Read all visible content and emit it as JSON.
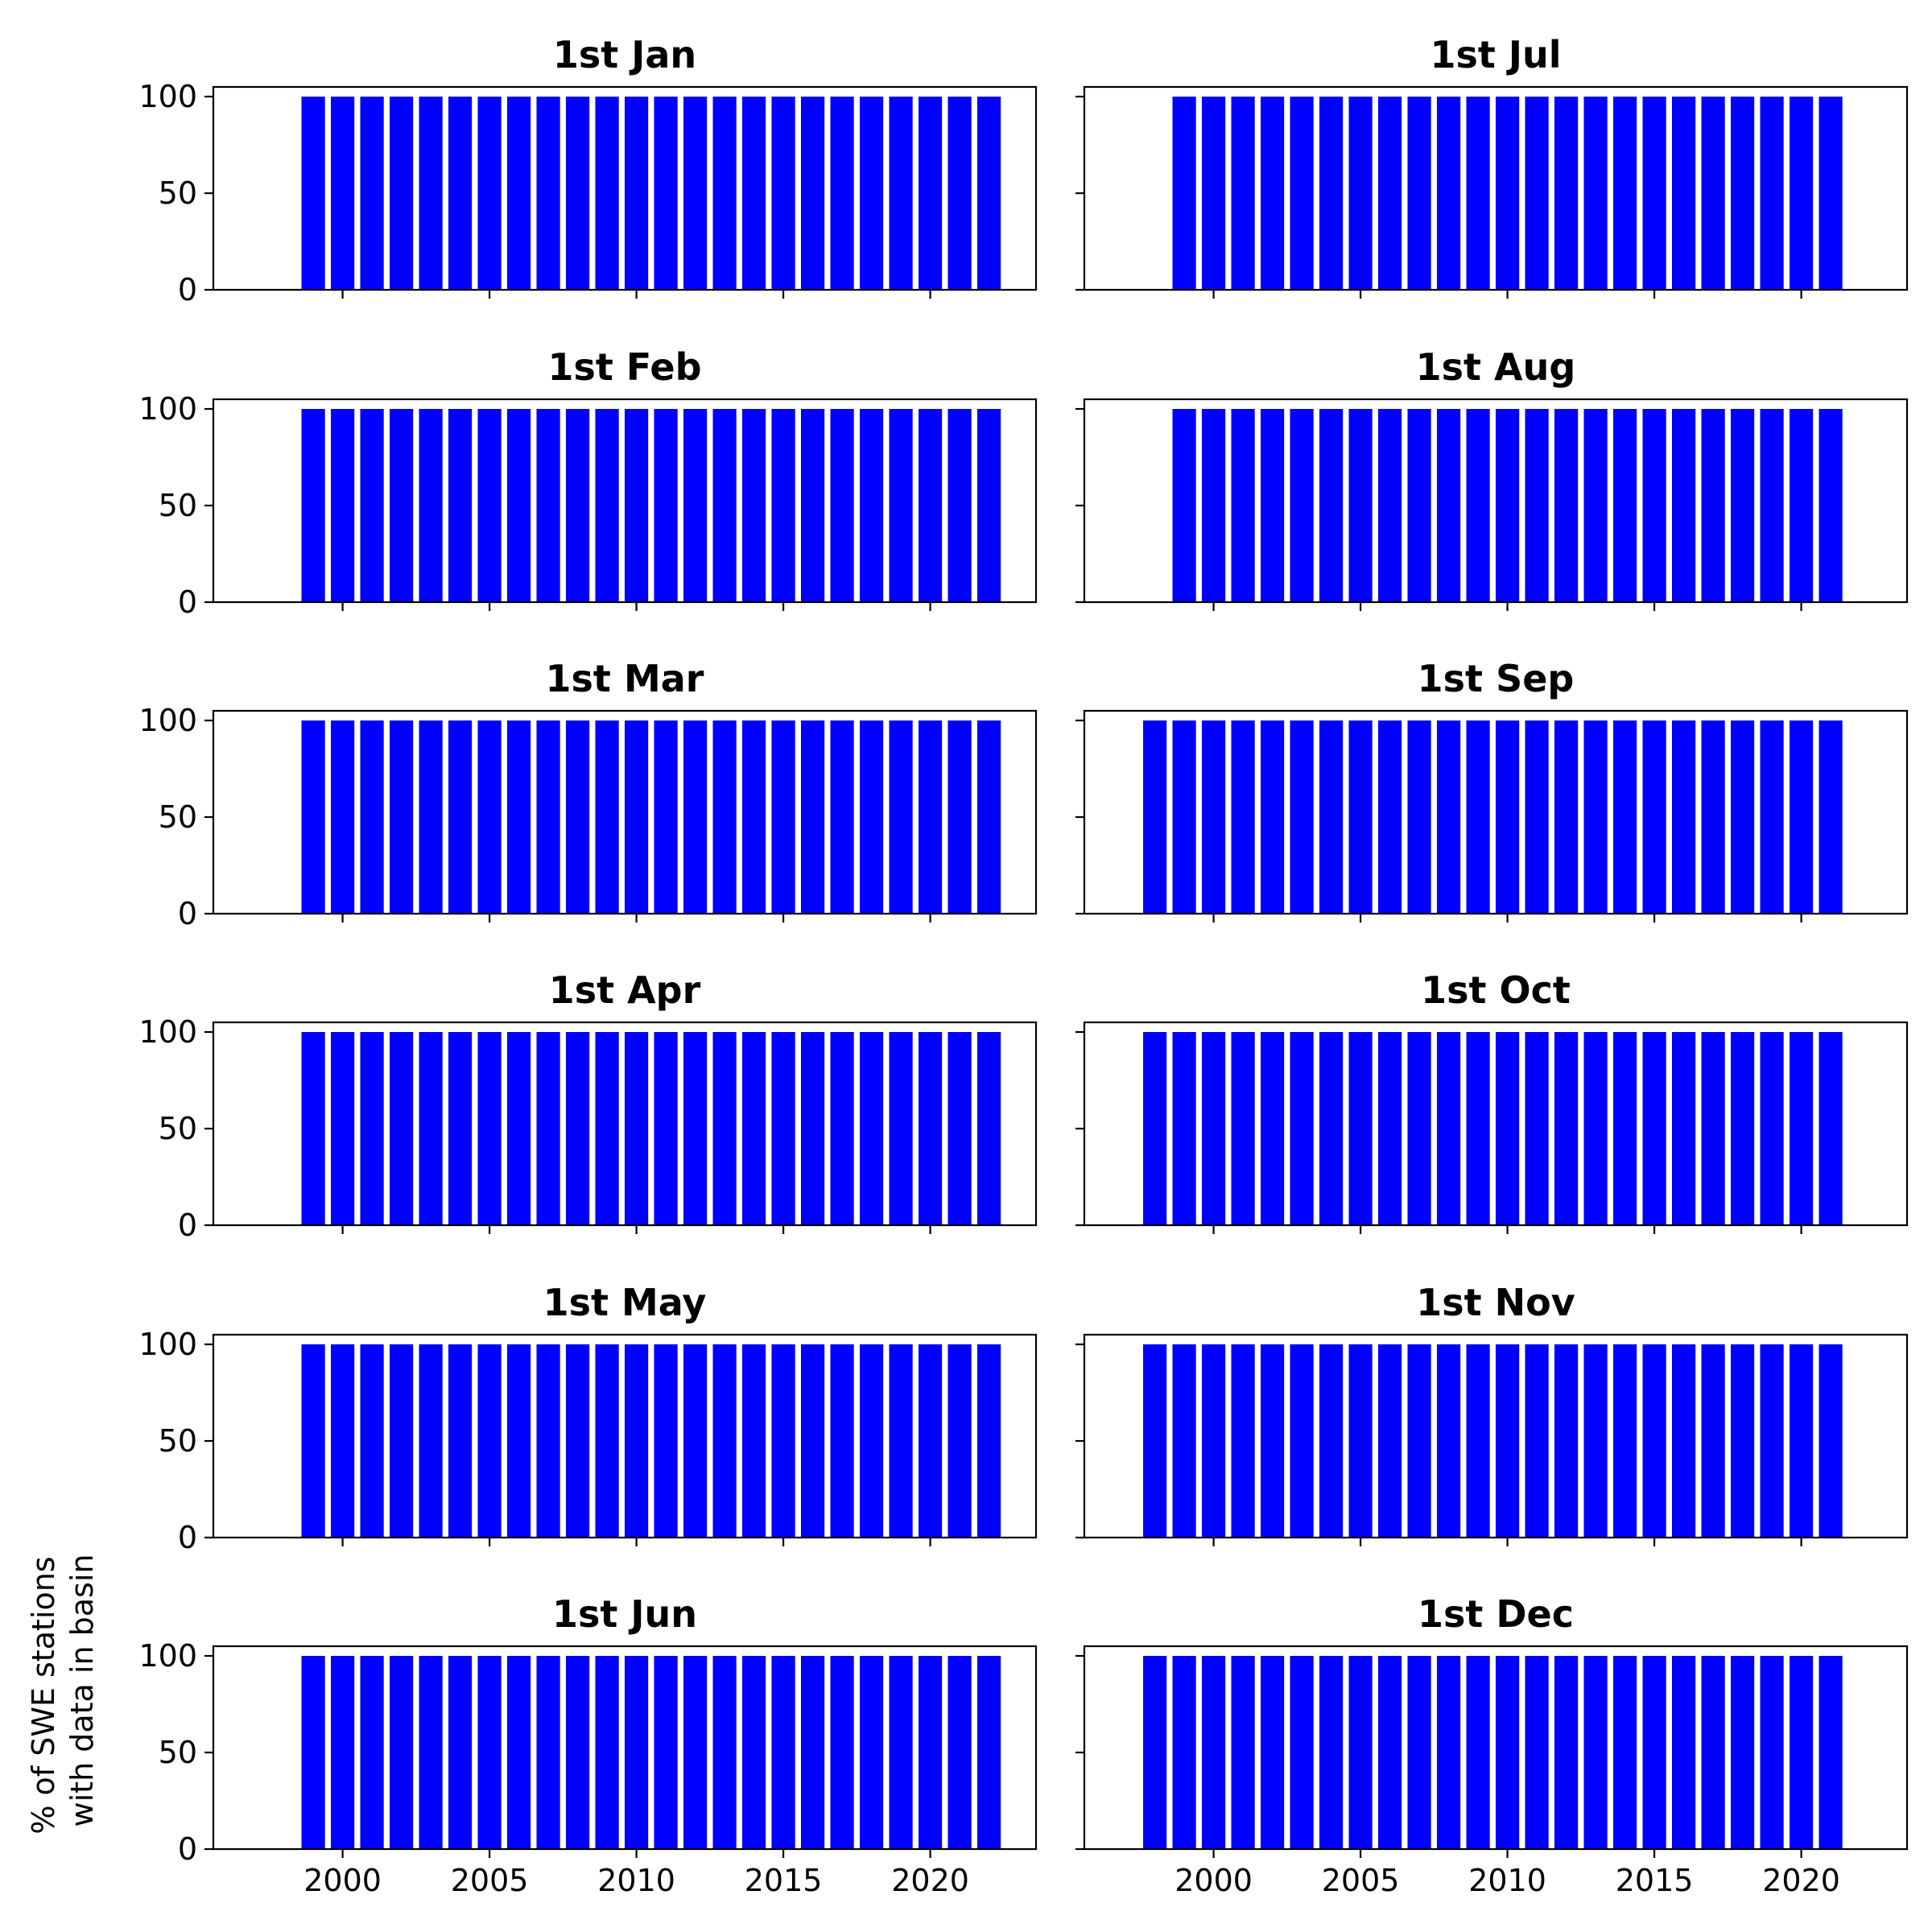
{
  "figure": {
    "ylabel_lines": [
      "% of SWE stations",
      "with data in basin"
    ]
  },
  "chart_data": [
    {
      "type": "bar",
      "title": "1st Jan",
      "x": [
        1999,
        2000,
        2001,
        2002,
        2003,
        2004,
        2005,
        2006,
        2007,
        2008,
        2009,
        2010,
        2011,
        2012,
        2013,
        2014,
        2015,
        2016,
        2017,
        2018,
        2019,
        2020,
        2021,
        2022
      ],
      "values": [
        100,
        100,
        100,
        100,
        100,
        100,
        100,
        100,
        100,
        100,
        100,
        100,
        100,
        100,
        100,
        100,
        100,
        100,
        100,
        100,
        100,
        100,
        100,
        100
      ],
      "ylim": [
        0,
        105
      ],
      "xlim": [
        1995.6,
        1023.6
      ],
      "yticks": [
        0,
        50,
        100
      ],
      "xticks": [
        2000,
        2005,
        2010,
        2015,
        2020
      ],
      "color": "#0000ff",
      "grid": false
    },
    {
      "type": "bar",
      "title": "1st Feb",
      "x": [
        1999,
        2000,
        2001,
        2002,
        2003,
        2004,
        2005,
        2006,
        2007,
        2008,
        2009,
        2010,
        2011,
        2012,
        2013,
        2014,
        2015,
        2016,
        2017,
        2018,
        2019,
        2020,
        2021,
        2022
      ],
      "values": [
        100,
        100,
        100,
        100,
        100,
        100,
        100,
        100,
        100,
        100,
        100,
        100,
        100,
        100,
        100,
        100,
        100,
        100,
        100,
        100,
        100,
        100,
        100,
        100
      ],
      "ylim": [
        0,
        105
      ],
      "yticks": [
        0,
        50,
        100
      ],
      "xticks": [
        2000,
        2005,
        2010,
        2015,
        2020
      ],
      "color": "#0000ff",
      "grid": false
    },
    {
      "type": "bar",
      "title": "1st Mar",
      "x": [
        1999,
        2000,
        2001,
        2002,
        2003,
        2004,
        2005,
        2006,
        2007,
        2008,
        2009,
        2010,
        2011,
        2012,
        2013,
        2014,
        2015,
        2016,
        2017,
        2018,
        2019,
        2020,
        2021,
        2022
      ],
      "values": [
        100,
        100,
        100,
        100,
        100,
        100,
        100,
        100,
        100,
        100,
        100,
        100,
        100,
        100,
        100,
        100,
        100,
        100,
        100,
        100,
        100,
        100,
        100,
        100
      ],
      "ylim": [
        0,
        105
      ],
      "yticks": [
        0,
        50,
        100
      ],
      "xticks": [
        2000,
        2005,
        2010,
        2015,
        2020
      ],
      "color": "#0000ff",
      "grid": false
    },
    {
      "type": "bar",
      "title": "1st Apr",
      "x": [
        1999,
        2000,
        2001,
        2002,
        2003,
        2004,
        2005,
        2006,
        2007,
        2008,
        2009,
        2010,
        2011,
        2012,
        2013,
        2014,
        2015,
        2016,
        2017,
        2018,
        2019,
        2020,
        2021,
        2022
      ],
      "values": [
        100,
        100,
        100,
        100,
        100,
        100,
        100,
        100,
        100,
        100,
        100,
        100,
        100,
        100,
        100,
        100,
        100,
        100,
        100,
        100,
        100,
        100,
        100,
        100
      ],
      "ylim": [
        0,
        105
      ],
      "yticks": [
        0,
        50,
        100
      ],
      "xticks": [
        2000,
        2005,
        2010,
        2015,
        2020
      ],
      "color": "#0000ff",
      "grid": false
    },
    {
      "type": "bar",
      "title": "1st May",
      "x": [
        1999,
        2000,
        2001,
        2002,
        2003,
        2004,
        2005,
        2006,
        2007,
        2008,
        2009,
        2010,
        2011,
        2012,
        2013,
        2014,
        2015,
        2016,
        2017,
        2018,
        2019,
        2020,
        2021,
        2022
      ],
      "values": [
        100,
        100,
        100,
        100,
        100,
        100,
        100,
        100,
        100,
        100,
        100,
        100,
        100,
        100,
        100,
        100,
        100,
        100,
        100,
        100,
        100,
        100,
        100,
        100
      ],
      "ylim": [
        0,
        105
      ],
      "yticks": [
        0,
        50,
        100
      ],
      "xticks": [
        2000,
        2005,
        2010,
        2015,
        2020
      ],
      "color": "#0000ff",
      "grid": false
    },
    {
      "type": "bar",
      "title": "1st Jun",
      "x": [
        1999,
        2000,
        2001,
        2002,
        2003,
        2004,
        2005,
        2006,
        2007,
        2008,
        2009,
        2010,
        2011,
        2012,
        2013,
        2014,
        2015,
        2016,
        2017,
        2018,
        2019,
        2020,
        2021,
        2022
      ],
      "values": [
        100,
        100,
        100,
        100,
        100,
        100,
        100,
        100,
        100,
        100,
        100,
        100,
        100,
        100,
        100,
        100,
        100,
        100,
        100,
        100,
        100,
        100,
        100,
        100
      ],
      "ylim": [
        0,
        105
      ],
      "yticks": [
        0,
        50,
        100
      ],
      "xticks": [
        2000,
        2005,
        2010,
        2015,
        2020
      ],
      "color": "#0000ff",
      "grid": false
    },
    {
      "type": "bar",
      "title": "1st Jul",
      "x": [
        1999,
        2000,
        2001,
        2002,
        2003,
        2004,
        2005,
        2006,
        2007,
        2008,
        2009,
        2010,
        2011,
        2012,
        2013,
        2014,
        2015,
        2016,
        2017,
        2018,
        2019,
        2020,
        2021
      ],
      "values": [
        100,
        100,
        100,
        100,
        100,
        100,
        100,
        100,
        100,
        100,
        100,
        100,
        100,
        100,
        100,
        100,
        100,
        100,
        100,
        100,
        100,
        100,
        100
      ],
      "ylim": [
        0,
        105
      ],
      "yticks": [
        0,
        50,
        100
      ],
      "xticks": [
        2000,
        2005,
        2010,
        2015,
        2020
      ],
      "color": "#0000ff",
      "grid": false
    },
    {
      "type": "bar",
      "title": "1st Aug",
      "x": [
        1999,
        2000,
        2001,
        2002,
        2003,
        2004,
        2005,
        2006,
        2007,
        2008,
        2009,
        2010,
        2011,
        2012,
        2013,
        2014,
        2015,
        2016,
        2017,
        2018,
        2019,
        2020,
        2021
      ],
      "values": [
        100,
        100,
        100,
        100,
        100,
        100,
        100,
        100,
        100,
        100,
        100,
        100,
        100,
        100,
        100,
        100,
        100,
        100,
        100,
        100,
        100,
        100,
        100
      ],
      "ylim": [
        0,
        105
      ],
      "yticks": [
        0,
        50,
        100
      ],
      "xticks": [
        2000,
        2005,
        2010,
        2015,
        2020
      ],
      "color": "#0000ff",
      "grid": false
    },
    {
      "type": "bar",
      "title": "1st Sep",
      "x": [
        1998,
        1999,
        2000,
        2001,
        2002,
        2003,
        2004,
        2005,
        2006,
        2007,
        2008,
        2009,
        2010,
        2011,
        2012,
        2013,
        2014,
        2015,
        2016,
        2017,
        2018,
        2019,
        2020,
        2021
      ],
      "values": [
        100,
        100,
        100,
        100,
        100,
        100,
        100,
        100,
        100,
        100,
        100,
        100,
        100,
        100,
        100,
        100,
        100,
        100,
        100,
        100,
        100,
        100,
        100,
        100
      ],
      "ylim": [
        0,
        105
      ],
      "yticks": [
        0,
        50,
        100
      ],
      "xticks": [
        2000,
        2005,
        2010,
        2015,
        2020
      ],
      "color": "#0000ff",
      "grid": false
    },
    {
      "type": "bar",
      "title": "1st Oct",
      "x": [
        1998,
        1999,
        2000,
        2001,
        2002,
        2003,
        2004,
        2005,
        2006,
        2007,
        2008,
        2009,
        2010,
        2011,
        2012,
        2013,
        2014,
        2015,
        2016,
        2017,
        2018,
        2019,
        2020,
        2021
      ],
      "values": [
        100,
        100,
        100,
        100,
        100,
        100,
        100,
        100,
        100,
        100,
        100,
        100,
        100,
        100,
        100,
        100,
        100,
        100,
        100,
        100,
        100,
        100,
        100,
        100
      ],
      "ylim": [
        0,
        105
      ],
      "yticks": [
        0,
        50,
        100
      ],
      "xticks": [
        2000,
        2005,
        2010,
        2015,
        2020
      ],
      "color": "#0000ff",
      "grid": false
    },
    {
      "type": "bar",
      "title": "1st Nov",
      "x": [
        1998,
        1999,
        2000,
        2001,
        2002,
        2003,
        2004,
        2005,
        2006,
        2007,
        2008,
        2009,
        2010,
        2011,
        2012,
        2013,
        2014,
        2015,
        2016,
        2017,
        2018,
        2019,
        2020,
        2021
      ],
      "values": [
        100,
        100,
        100,
        100,
        100,
        100,
        100,
        100,
        100,
        100,
        100,
        100,
        100,
        100,
        100,
        100,
        100,
        100,
        100,
        100,
        100,
        100,
        100,
        100
      ],
      "ylim": [
        0,
        105
      ],
      "yticks": [
        0,
        50,
        100
      ],
      "xticks": [
        2000,
        2005,
        2010,
        2015,
        2020
      ],
      "color": "#0000ff",
      "grid": false
    },
    {
      "type": "bar",
      "title": "1st Dec",
      "x": [
        1998,
        1999,
        2000,
        2001,
        2002,
        2003,
        2004,
        2005,
        2006,
        2007,
        2008,
        2009,
        2010,
        2011,
        2012,
        2013,
        2014,
        2015,
        2016,
        2017,
        2018,
        2019,
        2020,
        2021
      ],
      "values": [
        100,
        100,
        100,
        100,
        100,
        100,
        100,
        100,
        100,
        100,
        100,
        100,
        100,
        100,
        100,
        100,
        100,
        100,
        100,
        100,
        100,
        100,
        100,
        100
      ],
      "ylim": [
        0,
        105
      ],
      "yticks": [
        0,
        50,
        100
      ],
      "xticks": [
        2000,
        2005,
        2010,
        2015,
        2020
      ],
      "color": "#0000ff",
      "grid": false
    }
  ]
}
